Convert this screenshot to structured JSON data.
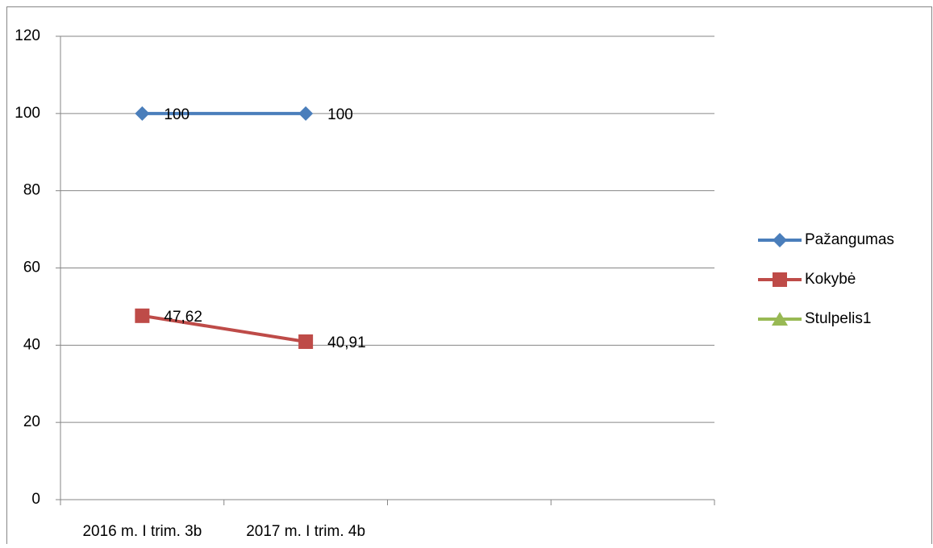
{
  "chart_data": {
    "type": "line",
    "categories": [
      "2016 m. I trim. 3b",
      "2017 m. I trim. 4b",
      null,
      null
    ],
    "series": [
      {
        "name": "Pažangumas",
        "color": "#4a7ebb",
        "marker": "diamond",
        "values": [
          100,
          100,
          null,
          null
        ]
      },
      {
        "name": "Kokybė",
        "color": "#be4b48",
        "marker": "square",
        "values": [
          47.62,
          40.91,
          null,
          null
        ],
        "value_labels": [
          "47,62",
          "40,91",
          null,
          null
        ]
      },
      {
        "name": "Stulpelis1",
        "color": "#98b954",
        "marker": "triangle",
        "values": [
          null,
          null,
          null,
          null
        ]
      }
    ],
    "ylim": [
      0,
      120
    ],
    "yticks": [
      0,
      20,
      40,
      60,
      80,
      100,
      120
    ],
    "grid": true,
    "legend": "right"
  }
}
